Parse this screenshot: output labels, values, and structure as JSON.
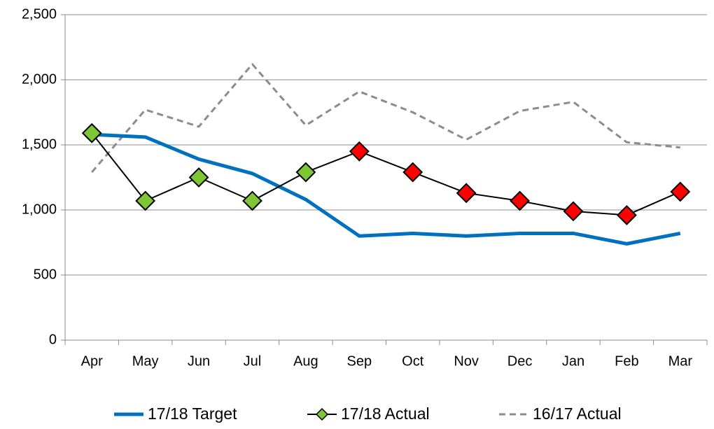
{
  "chart_data": {
    "type": "line",
    "categories": [
      "Apr",
      "May",
      "Jun",
      "Jul",
      "Aug",
      "Sep",
      "Oct",
      "Nov",
      "Dec",
      "Jan",
      "Feb",
      "Mar"
    ],
    "ylim": [
      0,
      2500
    ],
    "yticks": [
      0,
      500,
      {
        "value": 1000,
        "label": "1,000"
      },
      {
        "value": 1500,
        "label": "1,500"
      },
      {
        "value": 2000,
        "label": "2,000"
      },
      {
        "value": 2500,
        "label": "2,500"
      }
    ],
    "grid": true,
    "legend": "bottom",
    "series": [
      {
        "name": "17/18 Target",
        "color": "#0070c0",
        "width": 5,
        "dash": "none",
        "values": [
          1580,
          1560,
          1390,
          1280,
          1080,
          800,
          820,
          800,
          820,
          820,
          740,
          820
        ]
      },
      {
        "name": "17/18 Actual",
        "color": "#000000",
        "width": 2,
        "dash": "none",
        "marker": "diamond",
        "marker_colors": [
          "#7ec636",
          "#7ec636",
          "#7ec636",
          "#7ec636",
          "#7ec636",
          "#ff0000",
          "#ff0000",
          "#ff0000",
          "#ff0000",
          "#ff0000",
          "#ff0000",
          "#ff0000"
        ],
        "values": [
          1590,
          1070,
          1250,
          1070,
          1290,
          1450,
          1290,
          1130,
          1070,
          990,
          960,
          1140
        ]
      },
      {
        "name": "16/17 Actual",
        "color": "#8c8c8c",
        "width": 3,
        "dash": "9 6",
        "values": [
          1290,
          1770,
          1640,
          2120,
          1650,
          1910,
          1750,
          1540,
          1760,
          1830,
          1520,
          1480
        ]
      }
    ]
  }
}
